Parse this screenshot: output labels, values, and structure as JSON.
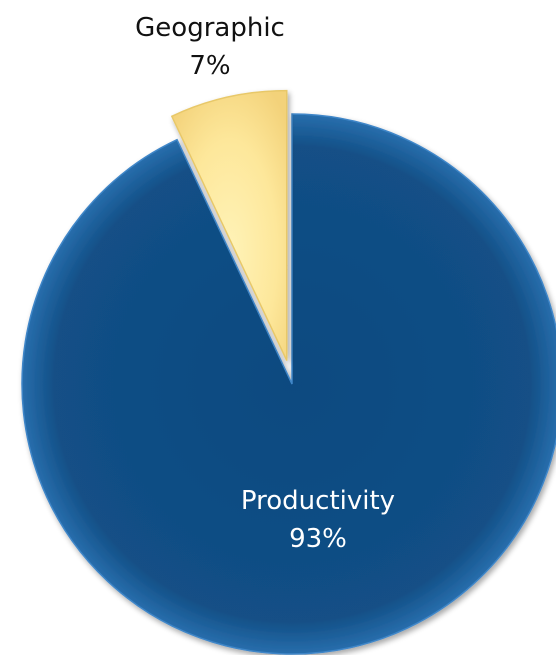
{
  "chart_data": {
    "type": "pie",
    "title": "",
    "slices": [
      {
        "label": "Productivity",
        "percent_label": "93%",
        "value": 93,
        "color": "#1b5a94",
        "exploded": false
      },
      {
        "label": "Geographic",
        "percent_label": "7%",
        "value": 7,
        "color": "#fde18a",
        "exploded": true
      }
    ],
    "start_angle_deg": 0,
    "direction": "clockwise"
  }
}
